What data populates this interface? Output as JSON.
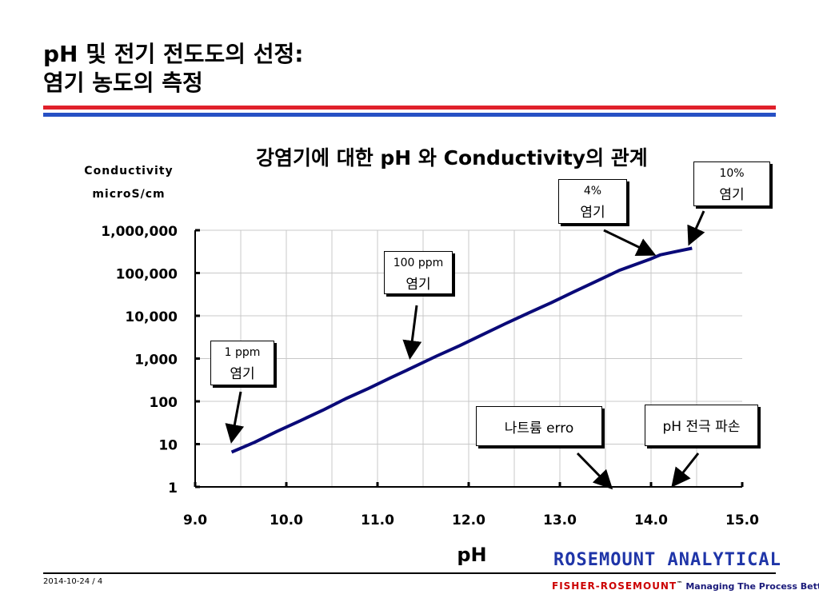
{
  "slide": {
    "title_line1": "pH 및 전기 전도도의 선정:",
    "title_line2": "염기 농도의 측정"
  },
  "colors": {
    "rule_red": "#e0202a",
    "rule_blue": "#2650c4",
    "line": "#0a0a78"
  },
  "chart_data": {
    "type": "line",
    "title": "강염기에 대한 pH 와 Conductivity의 관계",
    "xlabel": "pH",
    "ylabel_line1": "Conductivity",
    "ylabel_line2": "microS/cm",
    "xlim": [
      9.0,
      15.0
    ],
    "ylim": [
      1,
      1000000
    ],
    "y_scale": "log",
    "x_ticks": [
      "9.0",
      "10.0",
      "11.0",
      "12.0",
      "13.0",
      "14.0",
      "15.0"
    ],
    "y_ticks": [
      "1",
      "10",
      "100",
      "1,000",
      "10,000",
      "100,000",
      "1,000,000"
    ],
    "grid": true,
    "series": [
      {
        "x": [
          9.4,
          9.65,
          9.9,
          10.15,
          10.4,
          10.65,
          10.9,
          11.15,
          11.4,
          11.65,
          11.9,
          12.15,
          12.4,
          12.65,
          12.9,
          13.15,
          13.4,
          13.65,
          13.9,
          14.0,
          14.1,
          14.25,
          14.45
        ],
        "y": [
          6.5,
          11,
          20,
          35,
          62,
          115,
          200,
          360,
          640,
          1150,
          2000,
          3600,
          6500,
          11500,
          20000,
          36000,
          64000,
          115000,
          180000,
          215000,
          265000,
          310000,
          380000
        ]
      }
    ],
    "annotations": [
      {
        "line1": "1 ppm",
        "line2": "염기"
      },
      {
        "line1": "100 ppm",
        "line2": "염기"
      },
      {
        "line1": "4%",
        "line2": "염기"
      },
      {
        "line1": "10%",
        "line2": "염기"
      },
      {
        "line1": "나트륨 erro"
      },
      {
        "line1": "pH 전극 파손"
      }
    ]
  },
  "footer": {
    "brand_top": "ROSEMOUNT ANALYTICAL",
    "date_page": "2014-10-24 / 4",
    "brand_red": "FISHER-ROSEMOUNT",
    "tm": "™",
    "tagline": "Managing The Process Better."
  }
}
